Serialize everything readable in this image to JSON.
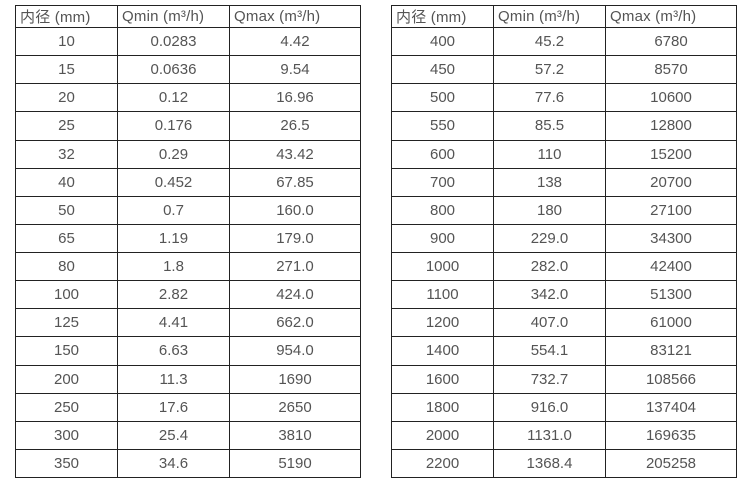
{
  "colors": {
    "background": "#ffffff",
    "border": "#222222",
    "text": "#545454"
  },
  "tables": [
    {
      "name": "flow-spec-table-small-diameters",
      "headers": [
        "内径 (mm)",
        "Qmin (m³/h)",
        "Qmax (m³/h)"
      ],
      "rows": [
        [
          "10",
          "0.0283",
          "4.42"
        ],
        [
          "15",
          "0.0636",
          "9.54"
        ],
        [
          "20",
          "0.12",
          "16.96"
        ],
        [
          "25",
          "0.176",
          "26.5"
        ],
        [
          "32",
          "0.29",
          "43.42"
        ],
        [
          "40",
          "0.452",
          "67.85"
        ],
        [
          "50",
          "0.7",
          "160.0"
        ],
        [
          "65",
          "1.19",
          "179.0"
        ],
        [
          "80",
          "1.8",
          "271.0"
        ],
        [
          "100",
          "2.82",
          "424.0"
        ],
        [
          "125",
          "4.41",
          "662.0"
        ],
        [
          "150",
          "6.63",
          "954.0"
        ],
        [
          "200",
          "11.3",
          "1690"
        ],
        [
          "250",
          "17.6",
          "2650"
        ],
        [
          "300",
          "25.4",
          "3810"
        ],
        [
          "350",
          "34.6",
          "5190"
        ]
      ]
    },
    {
      "name": "flow-spec-table-large-diameters",
      "headers": [
        "内径 (mm)",
        "Qmin (m³/h)",
        "Qmax (m³/h)"
      ],
      "rows": [
        [
          "400",
          "45.2",
          "6780"
        ],
        [
          "450",
          "57.2",
          "8570"
        ],
        [
          "500",
          "77.6",
          "10600"
        ],
        [
          "550",
          "85.5",
          "12800"
        ],
        [
          "600",
          "110",
          "15200"
        ],
        [
          "700",
          "138",
          "20700"
        ],
        [
          "800",
          "180",
          "27100"
        ],
        [
          "900",
          "229.0",
          "34300"
        ],
        [
          "1000",
          "282.0",
          "42400"
        ],
        [
          "1100",
          "342.0",
          "51300"
        ],
        [
          "1200",
          "407.0",
          "61000"
        ],
        [
          "1400",
          "554.1",
          "83121"
        ],
        [
          "1600",
          "732.7",
          "108566"
        ],
        [
          "1800",
          "916.0",
          "137404"
        ],
        [
          "2000",
          "1131.0",
          "169635"
        ],
        [
          "2200",
          "1368.4",
          "205258"
        ]
      ]
    }
  ]
}
